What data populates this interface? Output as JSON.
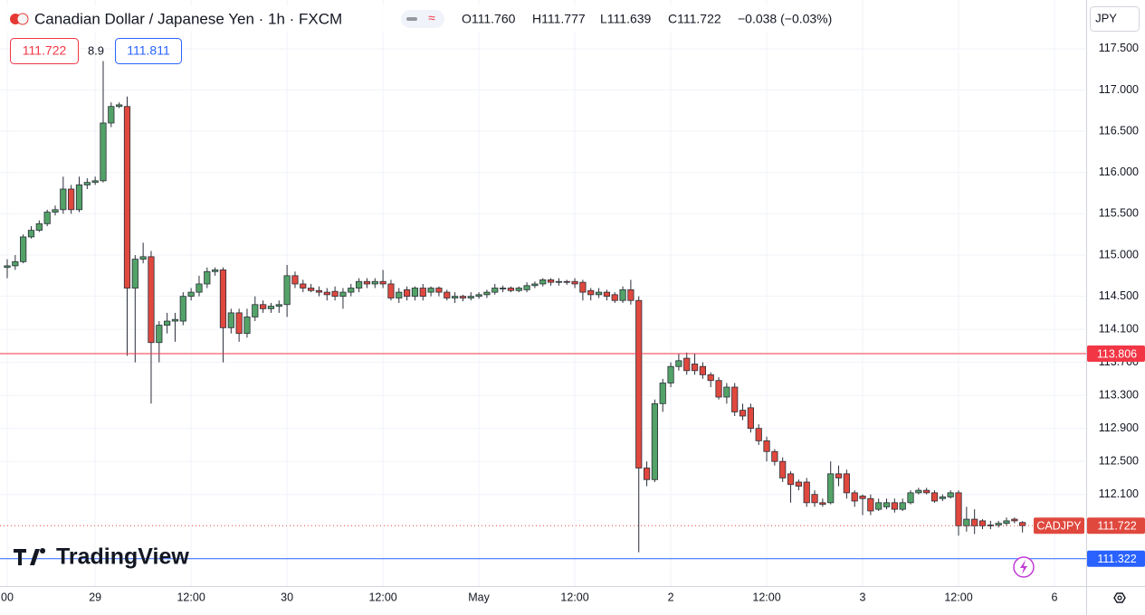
{
  "header": {
    "title": "Canadian Dollar / Japanese Yen · 1h · FXCM",
    "ohlc": [
      "O111.760",
      "H111.777",
      "L111.639",
      "C111.722",
      "−0.038 (−0.03%)"
    ],
    "sell_price": "111.722",
    "spread": "8.9",
    "buy_price": "111.811",
    "currency": "JPY",
    "logo": "TradingView"
  },
  "chart_data": {
    "type": "candlestick",
    "categories": [
      "00",
      null,
      null,
      null,
      null,
      null,
      null,
      null,
      null,
      null,
      null,
      "29",
      null,
      null,
      null,
      null,
      null,
      null,
      null,
      null,
      null,
      null,
      null,
      "12:00",
      null,
      null,
      null,
      null,
      null,
      null,
      null,
      null,
      null,
      null,
      null,
      "30",
      null,
      null,
      null,
      null,
      null,
      null,
      null,
      null,
      null,
      null,
      null,
      "12:00",
      null,
      null,
      null,
      null,
      null,
      null,
      null,
      null,
      null,
      null,
      null,
      "May",
      null,
      null,
      null,
      null,
      null,
      null,
      null,
      null,
      null,
      null,
      null,
      "12:00",
      null,
      null,
      null,
      null,
      null,
      null,
      null,
      null,
      null,
      null,
      null,
      "2",
      null,
      null,
      null,
      null,
      null,
      null,
      null,
      null,
      null,
      null,
      null,
      "12:00",
      null,
      null,
      null,
      null,
      null,
      null,
      null,
      null,
      null,
      null,
      null,
      "3",
      null,
      null,
      null,
      null,
      null,
      null,
      null,
      null,
      null,
      null,
      null,
      "12:00",
      null,
      null,
      null,
      null,
      null,
      null,
      null,
      null,
      null,
      null,
      null,
      "6"
    ],
    "series": [
      {
        "name": "CADJPY",
        "up_color": "#53a267",
        "down_color": "#e0483e",
        "border_color": "#2a2e39",
        "open": [
          114.85,
          114.87,
          114.92,
          115.22,
          115.3,
          115.38,
          115.52,
          115.55,
          115.8,
          115.55,
          115.85,
          115.88,
          115.9,
          116.6,
          116.8,
          116.8,
          114.6,
          114.95,
          114.98,
          113.94,
          114.15,
          114.2,
          114.2,
          114.5,
          114.55,
          114.65,
          114.8,
          114.82,
          114.12,
          114.3,
          114.05,
          114.25,
          114.4,
          114.35,
          114.38,
          114.4,
          114.75,
          114.65,
          114.6,
          114.57,
          114.55,
          114.56,
          114.5,
          114.55,
          114.6,
          114.68,
          114.65,
          114.68,
          114.65,
          114.48,
          114.58,
          114.5,
          114.6,
          114.55,
          114.6,
          114.55,
          114.48,
          114.5,
          114.48,
          114.5,
          114.52,
          114.55,
          114.6,
          114.6,
          114.57,
          114.58,
          114.63,
          114.65,
          114.7,
          114.67,
          114.68,
          114.68,
          114.67,
          114.57,
          114.52,
          114.55,
          114.52,
          114.45,
          114.58,
          114.45,
          112.42,
          112.28,
          113.2,
          113.45,
          113.65,
          113.75,
          113.68,
          113.65,
          113.55,
          113.48,
          113.28,
          113.4,
          113.12,
          113.15,
          112.9,
          112.75,
          112.62,
          112.5,
          112.35,
          112.25,
          112.25,
          112.1,
          112.0,
          112.0,
          112.35,
          112.35,
          112.12,
          112.08,
          112.05,
          111.92,
          111.95,
          112.0,
          111.92,
          112.0,
          112.12,
          112.15,
          112.12,
          112.05,
          112.07,
          112.12,
          111.72,
          111.8,
          111.78,
          111.72,
          111.73,
          111.75,
          111.8,
          111.76,
          null,
          null,
          null,
          null
        ],
        "high": [
          114.95,
          115.0,
          115.25,
          115.35,
          115.42,
          115.55,
          115.6,
          115.95,
          115.85,
          115.95,
          115.93,
          115.95,
          117.35,
          116.85,
          116.85,
          116.92,
          115.0,
          115.15,
          115.05,
          114.2,
          114.3,
          114.3,
          114.55,
          114.6,
          114.75,
          114.85,
          114.85,
          114.85,
          114.35,
          114.35,
          114.35,
          114.5,
          114.45,
          114.42,
          114.45,
          114.88,
          114.8,
          114.7,
          114.65,
          114.62,
          114.6,
          114.62,
          114.6,
          114.65,
          114.72,
          114.72,
          114.72,
          114.82,
          114.7,
          114.6,
          114.62,
          114.62,
          114.65,
          114.62,
          114.62,
          114.58,
          114.55,
          114.52,
          114.55,
          114.55,
          114.58,
          114.65,
          114.63,
          114.62,
          114.62,
          114.67,
          114.68,
          114.72,
          114.72,
          114.72,
          114.7,
          114.72,
          114.7,
          114.6,
          114.6,
          114.58,
          114.55,
          114.62,
          114.7,
          114.5,
          112.5,
          113.25,
          113.5,
          113.7,
          113.8,
          113.82,
          113.8,
          113.7,
          113.58,
          113.52,
          113.45,
          113.45,
          113.2,
          113.2,
          112.95,
          112.8,
          112.65,
          112.55,
          112.38,
          112.28,
          112.3,
          112.15,
          112.05,
          112.5,
          112.45,
          112.4,
          112.15,
          112.1,
          112.1,
          112.05,
          112.05,
          112.05,
          112.05,
          112.15,
          112.18,
          112.18,
          112.15,
          112.1,
          112.15,
          112.15,
          111.95,
          111.92,
          111.8,
          111.78,
          111.78,
          111.82,
          111.82,
          111.777,
          null,
          null,
          null,
          null
        ],
        "low": [
          114.72,
          114.82,
          114.9,
          115.2,
          115.28,
          115.35,
          115.48,
          115.5,
          115.5,
          115.52,
          115.8,
          115.85,
          115.88,
          116.55,
          116.78,
          113.78,
          113.7,
          114.9,
          113.2,
          113.7,
          114.05,
          113.95,
          114.15,
          114.45,
          114.5,
          114.6,
          114.75,
          113.7,
          114.05,
          113.95,
          114.0,
          114.2,
          114.3,
          114.3,
          114.3,
          114.25,
          114.6,
          114.55,
          114.55,
          114.5,
          114.45,
          114.45,
          114.35,
          114.5,
          114.55,
          114.6,
          114.6,
          114.6,
          114.45,
          114.42,
          114.45,
          114.45,
          114.45,
          114.5,
          114.5,
          114.45,
          114.42,
          114.44,
          114.45,
          114.47,
          114.48,
          114.52,
          114.55,
          114.55,
          114.55,
          114.55,
          114.6,
          114.62,
          114.63,
          114.63,
          114.64,
          114.6,
          114.45,
          114.45,
          114.48,
          114.45,
          114.42,
          114.42,
          114.4,
          111.4,
          112.2,
          112.25,
          113.1,
          113.4,
          113.6,
          113.55,
          113.55,
          113.5,
          113.4,
          113.25,
          113.2,
          113.05,
          113.0,
          112.85,
          112.7,
          112.5,
          112.45,
          112.25,
          112.0,
          112.15,
          111.95,
          111.95,
          111.95,
          111.98,
          112.2,
          112.05,
          111.95,
          111.85,
          111.85,
          111.9,
          111.92,
          111.88,
          111.9,
          111.98,
          112.1,
          112.1,
          112.0,
          112.02,
          112.05,
          111.6,
          111.65,
          111.62,
          111.68,
          111.68,
          111.7,
          111.72,
          111.75,
          111.639,
          null,
          null,
          null,
          null
        ],
        "close": [
          114.87,
          114.92,
          115.22,
          115.3,
          115.38,
          115.52,
          115.55,
          115.8,
          115.55,
          115.85,
          115.88,
          115.9,
          116.6,
          116.8,
          116.82,
          114.6,
          114.95,
          114.98,
          113.94,
          114.15,
          114.2,
          114.22,
          114.5,
          114.55,
          114.65,
          114.8,
          114.82,
          114.12,
          114.3,
          114.05,
          114.25,
          114.4,
          114.35,
          114.38,
          114.4,
          114.75,
          114.65,
          114.6,
          114.57,
          114.55,
          114.52,
          114.5,
          114.55,
          114.6,
          114.68,
          114.65,
          114.68,
          114.65,
          114.48,
          114.55,
          114.5,
          114.6,
          114.5,
          114.6,
          114.55,
          114.48,
          114.5,
          114.48,
          114.5,
          114.52,
          114.55,
          114.6,
          114.6,
          114.57,
          114.6,
          114.63,
          114.65,
          114.7,
          114.67,
          114.68,
          114.67,
          114.65,
          114.55,
          114.52,
          114.55,
          114.5,
          114.45,
          114.58,
          114.45,
          112.42,
          112.28,
          113.2,
          113.45,
          113.65,
          113.72,
          113.6,
          113.6,
          113.55,
          113.48,
          113.28,
          113.4,
          113.1,
          113.05,
          112.9,
          112.75,
          112.62,
          112.5,
          112.3,
          112.22,
          112.2,
          112.0,
          112.0,
          111.98,
          112.35,
          112.3,
          112.12,
          112.02,
          112.05,
          111.9,
          112.0,
          112.0,
          111.92,
          112.0,
          112.12,
          112.15,
          112.12,
          112.02,
          112.07,
          112.12,
          111.72,
          111.8,
          111.72,
          111.72,
          111.73,
          111.75,
          111.78,
          111.78,
          111.722,
          null,
          null,
          null,
          null
        ]
      }
    ],
    "price_lines": [
      {
        "value": 113.806,
        "color": "#f23645",
        "style": "solid"
      },
      {
        "value": 111.322,
        "color": "#2962ff",
        "style": "solid"
      },
      {
        "value": 111.722,
        "color": "#e0483e",
        "style": "dotted",
        "tag": "CADJPY"
      }
    ],
    "ylim": [
      110.99,
      118.09
    ],
    "yticks": [
      {
        "value": 117.5,
        "label": "117.500"
      },
      {
        "value": 117,
        "label": "117.000"
      },
      {
        "value": 116.5,
        "label": "116.500"
      },
      {
        "value": 116,
        "label": "116.000"
      },
      {
        "value": 115.5,
        "label": "115.500"
      },
      {
        "value": 115,
        "label": "115.000"
      },
      {
        "value": 114.5,
        "label": "114.500"
      },
      {
        "value": 114.1,
        "label": "114.100"
      },
      {
        "value": 113.7,
        "label": "113.700"
      },
      {
        "value": 113.3,
        "label": "113.300"
      },
      {
        "value": 112.9,
        "label": "112.900"
      },
      {
        "value": 112.5,
        "label": "112.500"
      },
      {
        "value": 112.1,
        "label": "112.100"
      }
    ],
    "grid": true
  }
}
